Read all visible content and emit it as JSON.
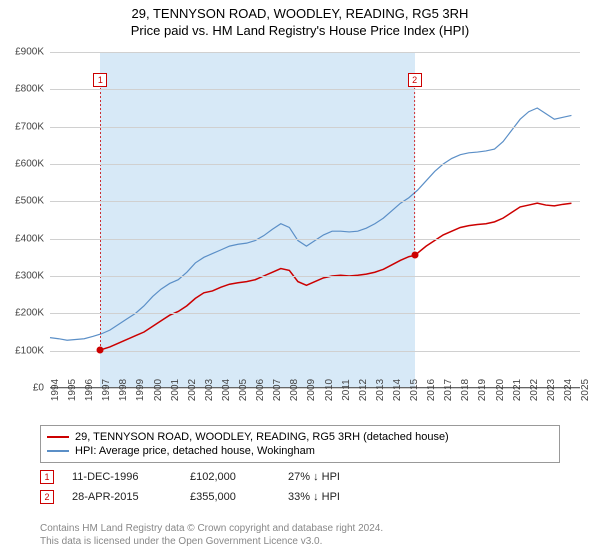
{
  "title": "29, TENNYSON ROAD, WOODLEY, READING, RG5 3RH",
  "subtitle": "Price paid vs. HM Land Registry's House Price Index (HPI)",
  "chart": {
    "type": "line",
    "background_color": "#ffffff",
    "grid_color": "#d0d0d0",
    "shaded_color": "#d7e9f7",
    "x_axis": {
      "min": 1994,
      "max": 2025,
      "ticks": [
        1994,
        1995,
        1996,
        1997,
        1998,
        1999,
        2000,
        2001,
        2002,
        2003,
        2004,
        2005,
        2006,
        2007,
        2008,
        2009,
        2010,
        2011,
        2012,
        2013,
        2014,
        2015,
        2016,
        2017,
        2018,
        2019,
        2020,
        2021,
        2022,
        2023,
        2024,
        2025
      ],
      "tick_fontsize": 10,
      "rotation": -90
    },
    "y_axis": {
      "min": 0,
      "max": 900,
      "tick_step": 100,
      "tick_labels": [
        "£0",
        "£100K",
        "£200K",
        "£300K",
        "£400K",
        "£500K",
        "£600K",
        "£700K",
        "£800K",
        "£900K"
      ],
      "tick_fontsize": 10
    },
    "shaded_region": {
      "x_start": 1996.95,
      "x_end": 2015.33
    },
    "series": [
      {
        "name": "price_paid",
        "label": "29, TENNYSON ROAD, WOODLEY, READING, RG5 3RH (detached house)",
        "color": "#cc0000",
        "line_width": 1.5,
        "data": [
          [
            1996.95,
            102
          ],
          [
            1997.5,
            110
          ],
          [
            1998,
            120
          ],
          [
            1998.5,
            130
          ],
          [
            1999,
            140
          ],
          [
            1999.5,
            150
          ],
          [
            2000,
            165
          ],
          [
            2000.5,
            180
          ],
          [
            2001,
            195
          ],
          [
            2001.5,
            205
          ],
          [
            2002,
            220
          ],
          [
            2002.5,
            240
          ],
          [
            2003,
            255
          ],
          [
            2003.5,
            260
          ],
          [
            2004,
            270
          ],
          [
            2004.5,
            278
          ],
          [
            2005,
            282
          ],
          [
            2005.5,
            285
          ],
          [
            2006,
            290
          ],
          [
            2006.5,
            300
          ],
          [
            2007,
            310
          ],
          [
            2007.5,
            320
          ],
          [
            2008,
            315
          ],
          [
            2008.5,
            285
          ],
          [
            2009,
            275
          ],
          [
            2009.5,
            285
          ],
          [
            2010,
            295
          ],
          [
            2010.5,
            300
          ],
          [
            2011,
            302
          ],
          [
            2011.5,
            300
          ],
          [
            2012,
            302
          ],
          [
            2012.5,
            305
          ],
          [
            2013,
            310
          ],
          [
            2013.5,
            318
          ],
          [
            2014,
            330
          ],
          [
            2014.5,
            342
          ],
          [
            2015,
            352
          ],
          [
            2015.33,
            355
          ],
          [
            2016,
            380
          ],
          [
            2016.5,
            395
          ],
          [
            2017,
            410
          ],
          [
            2017.5,
            420
          ],
          [
            2018,
            430
          ],
          [
            2018.5,
            435
          ],
          [
            2019,
            438
          ],
          [
            2019.5,
            440
          ],
          [
            2020,
            445
          ],
          [
            2020.5,
            455
          ],
          [
            2021,
            470
          ],
          [
            2021.5,
            485
          ],
          [
            2022,
            490
          ],
          [
            2022.5,
            495
          ],
          [
            2023,
            490
          ],
          [
            2023.5,
            488
          ],
          [
            2024,
            492
          ],
          [
            2024.5,
            495
          ]
        ]
      },
      {
        "name": "hpi",
        "label": "HPI: Average price, detached house, Wokingham",
        "color": "#5b8fc7",
        "line_width": 1.2,
        "data": [
          [
            1994,
            135
          ],
          [
            1994.5,
            132
          ],
          [
            1995,
            128
          ],
          [
            1995.5,
            130
          ],
          [
            1996,
            132
          ],
          [
            1996.5,
            138
          ],
          [
            1997,
            145
          ],
          [
            1997.5,
            155
          ],
          [
            1998,
            170
          ],
          [
            1998.5,
            185
          ],
          [
            1999,
            200
          ],
          [
            1999.5,
            220
          ],
          [
            2000,
            245
          ],
          [
            2000.5,
            265
          ],
          [
            2001,
            280
          ],
          [
            2001.5,
            290
          ],
          [
            2002,
            310
          ],
          [
            2002.5,
            335
          ],
          [
            2003,
            350
          ],
          [
            2003.5,
            360
          ],
          [
            2004,
            370
          ],
          [
            2004.5,
            380
          ],
          [
            2005,
            385
          ],
          [
            2005.5,
            388
          ],
          [
            2006,
            395
          ],
          [
            2006.5,
            408
          ],
          [
            2007,
            425
          ],
          [
            2007.5,
            440
          ],
          [
            2008,
            430
          ],
          [
            2008.5,
            395
          ],
          [
            2009,
            380
          ],
          [
            2009.5,
            395
          ],
          [
            2010,
            410
          ],
          [
            2010.5,
            420
          ],
          [
            2011,
            420
          ],
          [
            2011.5,
            418
          ],
          [
            2012,
            420
          ],
          [
            2012.5,
            428
          ],
          [
            2013,
            440
          ],
          [
            2013.5,
            455
          ],
          [
            2014,
            475
          ],
          [
            2014.5,
            495
          ],
          [
            2015,
            510
          ],
          [
            2015.5,
            530
          ],
          [
            2016,
            555
          ],
          [
            2016.5,
            580
          ],
          [
            2017,
            600
          ],
          [
            2017.5,
            615
          ],
          [
            2018,
            625
          ],
          [
            2018.5,
            630
          ],
          [
            2019,
            632
          ],
          [
            2019.5,
            635
          ],
          [
            2020,
            640
          ],
          [
            2020.5,
            660
          ],
          [
            2021,
            690
          ],
          [
            2021.5,
            720
          ],
          [
            2022,
            740
          ],
          [
            2022.5,
            750
          ],
          [
            2023,
            735
          ],
          [
            2023.5,
            720
          ],
          [
            2024,
            725
          ],
          [
            2024.5,
            730
          ]
        ]
      }
    ],
    "transaction_markers": [
      {
        "id": "1",
        "x": 1996.95,
        "y": 102,
        "box_y_top": 825
      },
      {
        "id": "2",
        "x": 2015.33,
        "y": 355,
        "box_y_top": 825
      }
    ]
  },
  "legend": {
    "border_color": "#999999",
    "fontsize": 11,
    "items": [
      {
        "color": "#cc0000",
        "label": "29, TENNYSON ROAD, WOODLEY, READING, RG5 3RH (detached house)"
      },
      {
        "color": "#5b8fc7",
        "label": "HPI: Average price, detached house, Wokingham"
      }
    ]
  },
  "transactions": [
    {
      "marker": "1",
      "date": "11-DEC-1996",
      "price": "£102,000",
      "hpi_delta": "27% ↓ HPI"
    },
    {
      "marker": "2",
      "date": "28-APR-2015",
      "price": "£355,000",
      "hpi_delta": "33% ↓ HPI"
    }
  ],
  "footnote_line1": "Contains HM Land Registry data © Crown copyright and database right 2024.",
  "footnote_line2": "This data is licensed under the Open Government Licence v3.0."
}
